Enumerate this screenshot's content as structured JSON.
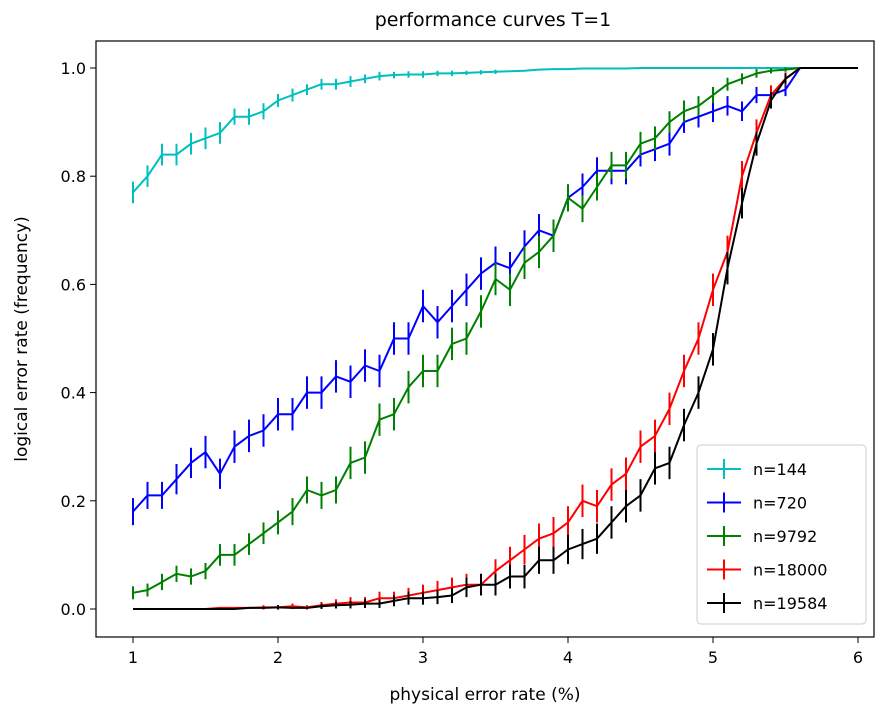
{
  "chart_data": {
    "type": "line",
    "title": "performance curves T=1",
    "xlabel": "physical error rate (%)",
    "ylabel": "logical error rate (frequency)",
    "xlim": [
      0.8,
      6.1
    ],
    "ylim": [
      -0.05,
      1.05
    ],
    "xticks": [
      1,
      2,
      3,
      4,
      5,
      6
    ],
    "yticks": [
      0.0,
      0.2,
      0.4,
      0.6,
      0.8,
      1.0
    ],
    "xtick_labels": [
      "1",
      "2",
      "3",
      "4",
      "5",
      "6"
    ],
    "ytick_labels": [
      "0.0",
      "0.2",
      "0.4",
      "0.6",
      "0.8",
      "1.0"
    ],
    "legend_position": "lower-right",
    "grid": false,
    "x": [
      1.0,
      1.1,
      1.2,
      1.3,
      1.4,
      1.5,
      1.6,
      1.7,
      1.8,
      1.9,
      2.0,
      2.1,
      2.2,
      2.3,
      2.4,
      2.5,
      2.6,
      2.7,
      2.8,
      2.9,
      3.0,
      3.1,
      3.2,
      3.3,
      3.4,
      3.5,
      3.6,
      3.7,
      3.8,
      3.9,
      4.0,
      4.1,
      4.2,
      4.3,
      4.4,
      4.5,
      4.6,
      4.7,
      4.8,
      4.9,
      5.0,
      5.1,
      5.2,
      5.3,
      5.4,
      5.5,
      5.6,
      5.7,
      5.8,
      5.9,
      6.0
    ],
    "series": [
      {
        "name": "n=144",
        "color": "#00bfbf",
        "values": [
          0.77,
          0.8,
          0.84,
          0.84,
          0.86,
          0.87,
          0.88,
          0.91,
          0.91,
          0.92,
          0.94,
          0.95,
          0.96,
          0.97,
          0.97,
          0.975,
          0.98,
          0.985,
          0.987,
          0.988,
          0.988,
          0.99,
          0.99,
          0.991,
          0.992,
          0.993,
          0.994,
          0.995,
          0.997,
          0.998,
          0.998,
          0.999,
          0.999,
          0.999,
          0.999,
          1.0,
          1.0,
          1.0,
          1.0,
          1.0,
          1.0,
          1.0,
          1.0,
          1.0,
          1.0,
          1.0,
          1.0,
          1.0,
          1.0,
          1.0,
          1.0
        ],
        "errors": [
          0.02,
          0.02,
          0.02,
          0.02,
          0.02,
          0.02,
          0.02,
          0.015,
          0.015,
          0.015,
          0.012,
          0.012,
          0.01,
          0.01,
          0.01,
          0.01,
          0.008,
          0.008,
          0.006,
          0.006,
          0.006,
          0.005,
          0.005,
          0.004,
          0.004,
          0.004,
          0.003,
          0.003,
          0.002,
          0.002,
          0.002,
          0.001,
          0.001,
          0.001,
          0.001,
          0.0,
          0.0,
          0.0,
          0.0,
          0.0,
          0.0,
          0.0,
          0.0,
          0.0,
          0.0,
          0.0,
          0.0,
          0.0,
          0.0,
          0.0,
          0.0
        ]
      },
      {
        "name": "n=720",
        "color": "#0000ff",
        "values": [
          0.18,
          0.21,
          0.21,
          0.24,
          0.27,
          0.29,
          0.25,
          0.3,
          0.32,
          0.33,
          0.36,
          0.36,
          0.4,
          0.4,
          0.43,
          0.42,
          0.45,
          0.44,
          0.5,
          0.5,
          0.56,
          0.53,
          0.56,
          0.59,
          0.62,
          0.64,
          0.63,
          0.67,
          0.7,
          0.69,
          0.76,
          0.78,
          0.81,
          0.81,
          0.81,
          0.84,
          0.85,
          0.86,
          0.9,
          0.91,
          0.92,
          0.93,
          0.92,
          0.95,
          0.95,
          0.96,
          1.0,
          1.0,
          1.0,
          1.0,
          1.0
        ],
        "errors": [
          0.025,
          0.025,
          0.025,
          0.028,
          0.028,
          0.03,
          0.028,
          0.03,
          0.03,
          0.03,
          0.03,
          0.03,
          0.03,
          0.03,
          0.03,
          0.03,
          0.03,
          0.03,
          0.03,
          0.03,
          0.03,
          0.03,
          0.03,
          0.03,
          0.03,
          0.03,
          0.03,
          0.03,
          0.03,
          0.03,
          0.025,
          0.025,
          0.025,
          0.025,
          0.025,
          0.022,
          0.022,
          0.022,
          0.02,
          0.02,
          0.02,
          0.018,
          0.018,
          0.015,
          0.015,
          0.012,
          0.0,
          0.0,
          0.0,
          0.0,
          0.0
        ]
      },
      {
        "name": "n=9792",
        "color": "#008000",
        "values": [
          0.03,
          0.035,
          0.05,
          0.065,
          0.06,
          0.07,
          0.1,
          0.1,
          0.12,
          0.14,
          0.16,
          0.18,
          0.22,
          0.21,
          0.22,
          0.27,
          0.28,
          0.35,
          0.36,
          0.41,
          0.44,
          0.44,
          0.49,
          0.5,
          0.55,
          0.61,
          0.59,
          0.64,
          0.66,
          0.69,
          0.76,
          0.74,
          0.78,
          0.82,
          0.82,
          0.86,
          0.87,
          0.9,
          0.92,
          0.93,
          0.95,
          0.97,
          0.98,
          0.99,
          0.995,
          0.997,
          1.0,
          1.0,
          1.0,
          1.0,
          1.0
        ],
        "errors": [
          0.012,
          0.012,
          0.015,
          0.015,
          0.015,
          0.015,
          0.02,
          0.02,
          0.02,
          0.02,
          0.022,
          0.025,
          0.025,
          0.025,
          0.025,
          0.03,
          0.03,
          0.03,
          0.03,
          0.03,
          0.03,
          0.03,
          0.03,
          0.03,
          0.03,
          0.03,
          0.03,
          0.03,
          0.03,
          0.03,
          0.025,
          0.025,
          0.025,
          0.025,
          0.025,
          0.022,
          0.022,
          0.02,
          0.02,
          0.018,
          0.015,
          0.012,
          0.01,
          0.008,
          0.005,
          0.004,
          0.0,
          0.0,
          0.0,
          0.0,
          0.0
        ]
      },
      {
        "name": "n=18000",
        "color": "#ff0000",
        "values": [
          0.0,
          0.0,
          0.0,
          0.0,
          0.0,
          0.0,
          0.002,
          0.002,
          0.002,
          0.003,
          0.003,
          0.005,
          0.003,
          0.007,
          0.01,
          0.012,
          0.012,
          0.02,
          0.02,
          0.025,
          0.03,
          0.035,
          0.04,
          0.045,
          0.045,
          0.07,
          0.09,
          0.11,
          0.13,
          0.14,
          0.16,
          0.2,
          0.19,
          0.23,
          0.25,
          0.3,
          0.32,
          0.37,
          0.44,
          0.5,
          0.59,
          0.66,
          0.8,
          0.88,
          0.95,
          0.98,
          1.0,
          1.0,
          1.0,
          1.0,
          1.0
        ],
        "errors": [
          0.0,
          0.0,
          0.0,
          0.0,
          0.0,
          0.0,
          0.003,
          0.003,
          0.003,
          0.004,
          0.004,
          0.005,
          0.004,
          0.006,
          0.008,
          0.01,
          0.01,
          0.012,
          0.012,
          0.014,
          0.015,
          0.017,
          0.018,
          0.02,
          0.02,
          0.022,
          0.025,
          0.027,
          0.028,
          0.03,
          0.03,
          0.03,
          0.03,
          0.03,
          0.03,
          0.03,
          0.03,
          0.03,
          0.03,
          0.03,
          0.03,
          0.03,
          0.028,
          0.025,
          0.018,
          0.012,
          0.0,
          0.0,
          0.0,
          0.0,
          0.0
        ]
      },
      {
        "name": "n=19584",
        "color": "#000000",
        "values": [
          0.0,
          0.0,
          0.0,
          0.0,
          0.0,
          0.0,
          0.0,
          0.0,
          0.002,
          0.002,
          0.003,
          0.002,
          0.002,
          0.005,
          0.007,
          0.008,
          0.01,
          0.01,
          0.015,
          0.02,
          0.02,
          0.022,
          0.025,
          0.04,
          0.045,
          0.045,
          0.06,
          0.06,
          0.09,
          0.09,
          0.11,
          0.12,
          0.13,
          0.16,
          0.19,
          0.21,
          0.26,
          0.27,
          0.34,
          0.4,
          0.48,
          0.63,
          0.75,
          0.86,
          0.94,
          0.98,
          1.0,
          1.0,
          1.0,
          1.0,
          1.0
        ],
        "errors": [
          0.0,
          0.0,
          0.0,
          0.0,
          0.0,
          0.0,
          0.0,
          0.0,
          0.003,
          0.003,
          0.004,
          0.003,
          0.003,
          0.005,
          0.006,
          0.007,
          0.008,
          0.008,
          0.01,
          0.012,
          0.012,
          0.013,
          0.014,
          0.018,
          0.02,
          0.02,
          0.022,
          0.022,
          0.025,
          0.025,
          0.027,
          0.028,
          0.028,
          0.03,
          0.03,
          0.03,
          0.03,
          0.03,
          0.03,
          0.03,
          0.03,
          0.03,
          0.028,
          0.022,
          0.015,
          0.01,
          0.0,
          0.0,
          0.0,
          0.0,
          0.0
        ]
      }
    ]
  }
}
